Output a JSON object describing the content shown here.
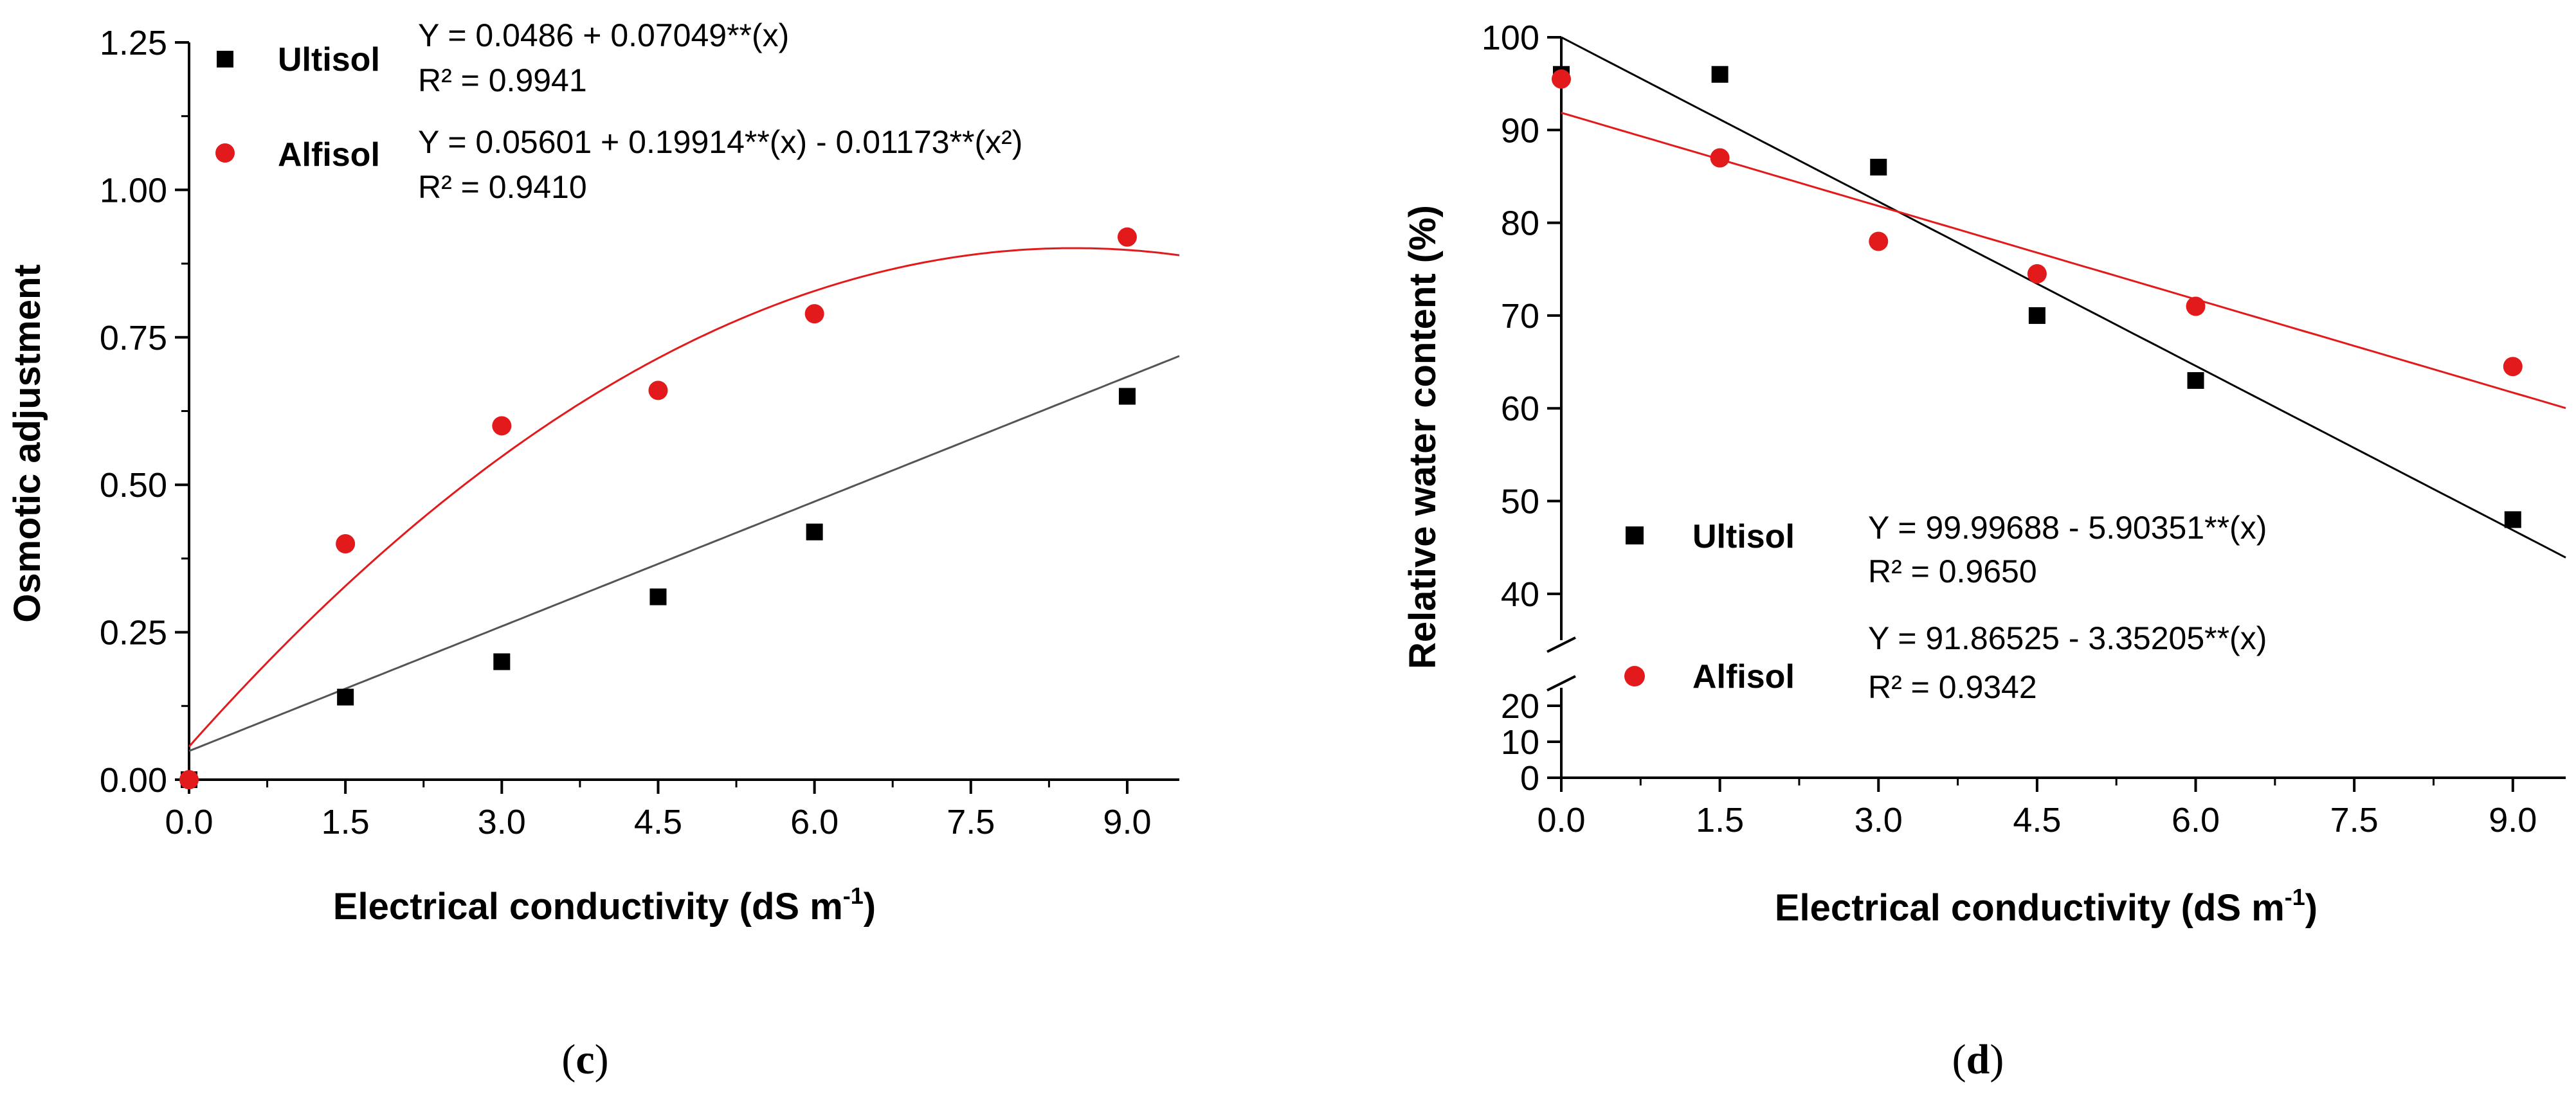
{
  "chart_data": [
    {
      "type": "scatter",
      "panel_label": "c",
      "xlabel": "Electrical conductivity (dS m",
      "xlabel_sup": "-1",
      "xlabel_end": ")",
      "ylabel": "Osmotic adjustment",
      "xlim": [
        0,
        9.5
      ],
      "ylim": [
        0,
        1.25
      ],
      "x_ticks": [
        "0.0",
        "1.5",
        "3.0",
        "4.5",
        "6.0",
        "7.5",
        "9.0"
      ],
      "y_ticks": [
        "0.00",
        "0.25",
        "0.50",
        "0.75",
        "1.00",
        "1.25"
      ],
      "series": [
        {
          "name": "Ultisol",
          "marker": "square",
          "color": "#000000",
          "x": [
            0,
            1.5,
            3.0,
            4.5,
            6.0,
            9.0
          ],
          "y": [
            0.0,
            0.14,
            0.2,
            0.31,
            0.42,
            0.65
          ],
          "fit": {
            "type": "linear",
            "coef": [
              0.0486,
              0.07049
            ],
            "line_color": "#555555"
          },
          "equation": "Y = 0.0486 + 0.07049**(x)",
          "r2": "R² = 0.9941"
        },
        {
          "name": "Alfisol",
          "marker": "circle",
          "color": "#e31a1c",
          "x": [
            0,
            1.5,
            3.0,
            4.5,
            6.0,
            9.0
          ],
          "y": [
            0.0,
            0.4,
            0.6,
            0.66,
            0.79,
            0.92
          ],
          "fit": {
            "type": "quadratic",
            "coef": [
              0.05601,
              0.19914,
              -0.01173
            ],
            "line_color": "#e31a1c"
          },
          "equation": "Y = 0.05601 + 0.19914**(x) - 0.01173**(x²)",
          "r2": "R² = 0.9410"
        }
      ]
    },
    {
      "type": "scatter",
      "panel_label": "d",
      "xlabel": "Electrical conductivity (dS m",
      "xlabel_sup": "-1",
      "xlabel_end": ")",
      "ylabel": "Relative water content (%)",
      "xlim": [
        0,
        9.5
      ],
      "ylim_lower": [
        0,
        25
      ],
      "ylim_upper": [
        35,
        100
      ],
      "axis_break": true,
      "x_ticks": [
        "0.0",
        "1.5",
        "3.0",
        "4.5",
        "6.0",
        "7.5",
        "9.0"
      ],
      "y_ticks_lower": [
        "0",
        "10",
        "20"
      ],
      "y_ticks_upper": [
        "40",
        "50",
        "60",
        "70",
        "80",
        "90",
        "100"
      ],
      "series": [
        {
          "name": "Ultisol",
          "marker": "square",
          "color": "#000000",
          "x": [
            0,
            1.5,
            3.0,
            4.5,
            6.0,
            9.0
          ],
          "y": [
            96,
            96,
            86,
            70,
            63,
            48
          ],
          "fit": {
            "type": "linear",
            "coef": [
              99.99688,
              -5.90351
            ],
            "line_color": "#000000"
          },
          "equation": "Y = 99.99688 - 5.90351**(x)",
          "r2": "R² = 0.9650"
        },
        {
          "name": "Alfisol",
          "marker": "circle",
          "color": "#e31a1c",
          "x": [
            0,
            1.5,
            3.0,
            4.5,
            6.0,
            9.0
          ],
          "y": [
            95.5,
            87,
            78,
            74.5,
            71,
            64.5
          ],
          "fit": {
            "type": "linear",
            "coef": [
              91.86525,
              -3.35205
            ],
            "line_color": "#e31a1c"
          },
          "equation": "Y = 91.86525 - 3.35205**(x)",
          "r2": "R² = 0.9342"
        }
      ]
    }
  ]
}
